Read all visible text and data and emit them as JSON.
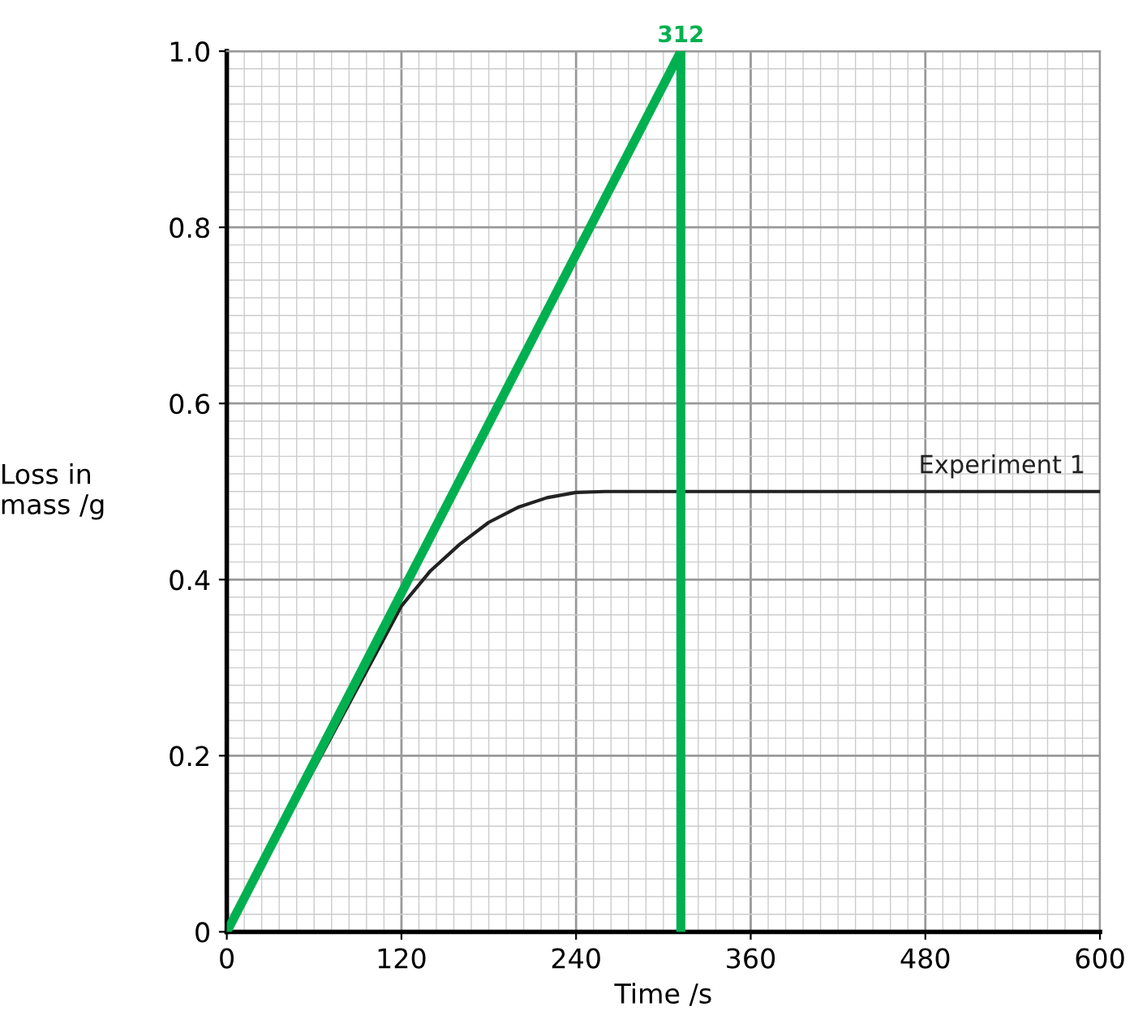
{
  "chart_data": {
    "type": "line",
    "xlabel": "Time /s",
    "ylabel": "Loss in\nmass /g",
    "xlim": [
      0,
      600
    ],
    "ylim": [
      0,
      1.0
    ],
    "xticks": [
      0,
      120,
      240,
      360,
      480,
      600
    ],
    "yticks": [
      {
        "value": 0,
        "label": "0"
      },
      0.2,
      0.4,
      0.6,
      0.8,
      {
        "value": 1.0,
        "label": "1.0"
      }
    ],
    "grid": true,
    "legend": false,
    "marker": "none",
    "line_style": "solid",
    "series": [
      {
        "name": "Experiment 1",
        "color": "#222222",
        "x": [
          0,
          120,
          140,
          160,
          180,
          200,
          220,
          240,
          260,
          600
        ],
        "values": [
          0,
          0.37,
          0.41,
          0.44,
          0.465,
          0.482,
          0.493,
          0.499,
          0.5,
          0.5
        ]
      },
      {
        "color": "#00b050",
        "x": [
          0,
          312
        ],
        "values": [
          0,
          1.0
        ]
      }
    ],
    "ref_lines": [
      {
        "axis": "x",
        "value": 312,
        "label": "312",
        "color": "#00b050"
      }
    ]
  }
}
